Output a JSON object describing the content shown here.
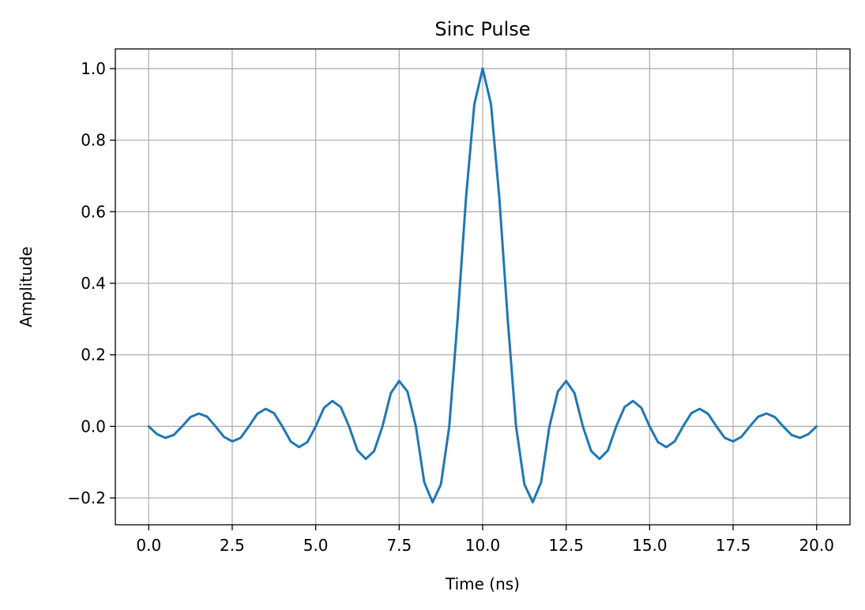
{
  "chart_data": {
    "type": "line",
    "title": "Sinc Pulse",
    "xlabel": "Time (ns)",
    "ylabel": "Amplitude",
    "xlim": [
      -1.0,
      21.0
    ],
    "ylim": [
      -0.275,
      1.055
    ],
    "xticks": [
      0.0,
      2.5,
      5.0,
      7.5,
      10.0,
      12.5,
      15.0,
      17.5,
      20.0
    ],
    "xtick_labels": [
      "0.0",
      "2.5",
      "5.0",
      "7.5",
      "10.0",
      "12.5",
      "15.0",
      "17.5",
      "20.0"
    ],
    "yticks": [
      -0.2,
      0.0,
      0.2,
      0.4,
      0.6,
      0.8,
      1.0
    ],
    "ytick_labels": [
      "−0.2",
      "0.0",
      "0.2",
      "0.4",
      "0.6",
      "0.8",
      "1.0"
    ],
    "grid": true,
    "series": [
      {
        "color": "#1f77b4",
        "x": [
          0,
          0.25,
          0.5,
          0.75,
          1,
          1.25,
          1.5,
          1.75,
          2,
          2.25,
          2.5,
          2.75,
          3,
          3.25,
          3.5,
          3.75,
          4,
          4.25,
          4.5,
          4.75,
          5,
          5.25,
          5.5,
          5.75,
          6,
          6.25,
          6.5,
          6.75,
          7,
          7.25,
          7.5,
          7.75,
          8,
          8.25,
          8.5,
          8.75,
          9,
          9.25,
          9.5,
          9.75,
          10,
          10.25,
          10.5,
          10.75,
          11,
          11.25,
          11.5,
          11.75,
          12,
          12.25,
          12.5,
          12.75,
          13,
          13.25,
          13.5,
          13.75,
          14,
          14.25,
          14.5,
          14.75,
          15,
          15.25,
          15.5,
          15.75,
          16,
          16.25,
          16.5,
          16.75,
          17,
          17.25,
          17.5,
          17.75,
          18,
          18.25,
          18.5,
          18.75,
          19,
          19.25,
          19.5,
          19.75,
          20
        ],
        "y": [
          0.0,
          -0.022,
          -0.032,
          -0.024,
          0.0,
          0.026,
          0.036,
          0.027,
          0.0,
          -0.029,
          -0.042,
          -0.032,
          0.0,
          0.035,
          0.049,
          0.037,
          0.0,
          -0.042,
          -0.058,
          -0.044,
          0.0,
          0.052,
          0.071,
          0.054,
          0.0,
          -0.067,
          -0.091,
          -0.069,
          0.0,
          0.093,
          0.127,
          0.097,
          0.0,
          -0.156,
          -0.212,
          -0.162,
          0.0,
          0.3,
          0.637,
          0.9,
          1.0,
          0.9,
          0.637,
          0.3,
          0.0,
          -0.162,
          -0.212,
          -0.156,
          0.0,
          0.097,
          0.127,
          0.093,
          0.0,
          -0.069,
          -0.091,
          -0.067,
          0.0,
          0.054,
          0.071,
          0.052,
          0.0,
          -0.044,
          -0.058,
          -0.042,
          0.0,
          0.037,
          0.049,
          0.035,
          0.0,
          -0.032,
          -0.042,
          -0.029,
          0.0,
          0.027,
          0.036,
          0.026,
          0.0,
          -0.024,
          -0.032,
          -0.022,
          0.0
        ]
      }
    ]
  }
}
